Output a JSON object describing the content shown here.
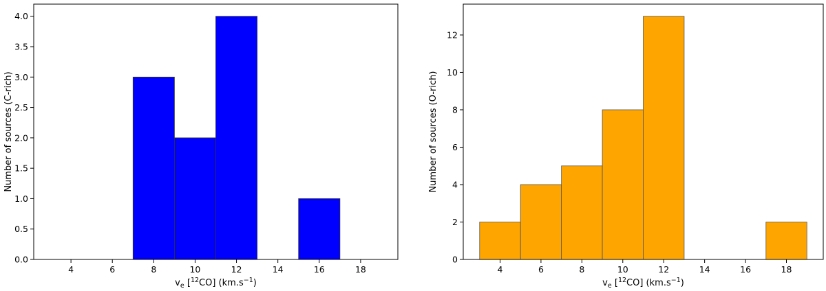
{
  "chart_data": [
    {
      "type": "bar",
      "variant": "histogram",
      "bins": [
        [
          7,
          9
        ],
        [
          9,
          11
        ],
        [
          11,
          13
        ],
        [
          15,
          17
        ]
      ],
      "values": [
        3,
        2,
        4,
        1
      ],
      "xlim": [
        2.2,
        19.8
      ],
      "ylim": [
        0,
        4.2
      ],
      "xticks": [
        "4",
        "6",
        "8",
        "10",
        "12",
        "14",
        "16",
        "18"
      ],
      "yticks": [
        "0.0",
        "0.5",
        "1.0",
        "1.5",
        "2.0",
        "2.5",
        "3.0",
        "3.5",
        "4.0"
      ],
      "ylabel": "Number of sources (C-rich)",
      "xlabel": {
        "main": "v",
        "sub": "e",
        "open": " [",
        "sup1": "12",
        "mid": "CO] (km.s",
        "sup2": "−1",
        "close": ")"
      },
      "color": "#0000ff",
      "edgecolor": "#333333",
      "grid": false
    },
    {
      "type": "bar",
      "variant": "histogram",
      "bins": [
        [
          3,
          5
        ],
        [
          5,
          7
        ],
        [
          7,
          9
        ],
        [
          9,
          11
        ],
        [
          11,
          13
        ],
        [
          17,
          19
        ]
      ],
      "values": [
        2,
        4,
        5,
        8,
        13,
        2
      ],
      "xlim": [
        2.2,
        19.8
      ],
      "ylim": [
        0,
        13.65
      ],
      "xticks": [
        "4",
        "6",
        "8",
        "10",
        "12",
        "14",
        "16",
        "18"
      ],
      "yticks": [
        "0",
        "2",
        "4",
        "6",
        "8",
        "10",
        "12"
      ],
      "ylabel": "Number of sources (O-rich)",
      "xlabel": {
        "main": "v",
        "sub": "e",
        "open": " [",
        "sup1": "12",
        "mid": "CO] (km.s",
        "sup2": "−1",
        "close": ")"
      },
      "color": "#ffa500",
      "edgecolor": "#555555",
      "grid": false
    }
  ]
}
